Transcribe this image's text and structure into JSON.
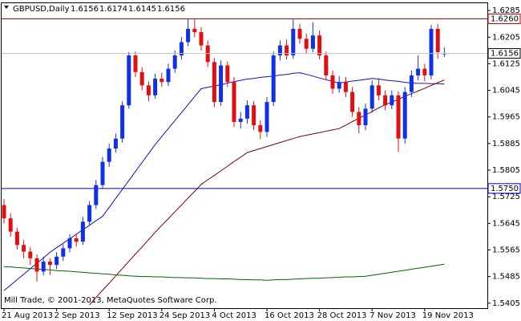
{
  "chart_data": {
    "type": "candlestick",
    "title": "GBPUSD,Daily",
    "footer": "Mill Trade, © 2001-2013, MetaQuotes Software Corp.",
    "categories": [
      "21 Aug 2013",
      null,
      null,
      null,
      null,
      null,
      null,
      null,
      "2 Sep 2013",
      null,
      null,
      null,
      null,
      null,
      null,
      null,
      "12 Sep 2013",
      null,
      null,
      null,
      null,
      null,
      null,
      null,
      "24 Sep 2013",
      null,
      null,
      null,
      null,
      null,
      null,
      null,
      "4 Oct 2013",
      null,
      null,
      null,
      null,
      null,
      null,
      null,
      "16 Oct 2013",
      null,
      null,
      null,
      null,
      null,
      null,
      null,
      "28 Oct 2013",
      null,
      null,
      null,
      null,
      null,
      null,
      null,
      "7 Nov 2013",
      null,
      null,
      null,
      null,
      null,
      null,
      null,
      "19 Nov 2013",
      null,
      null,
      null
    ],
    "open": [
      1.57,
      1.566,
      1.562,
      1.558,
      1.556,
      1.554,
      1.55,
      1.553,
      1.552,
      1.5545,
      1.557,
      1.56,
      1.559,
      1.565,
      1.57,
      1.576,
      1.583,
      1.587,
      1.59,
      1.6,
      1.615,
      1.61,
      1.606,
      1.603,
      1.608,
      1.607,
      1.611,
      1.615,
      1.619,
      1.623,
      1.622,
      1.618,
      1.613,
      1.601,
      1.612,
      1.607,
      1.595,
      1.596,
      1.6,
      1.594,
      1.592,
      1.601,
      1.615,
      1.618,
      1.615,
      1.623,
      1.62,
      1.617,
      1.621,
      1.615,
      1.609,
      1.605,
      1.607,
      1.604,
      1.598,
      1.594,
      1.599,
      1.606,
      1.603,
      1.6,
      1.603,
      1.59,
      1.604,
      1.609,
      1.611,
      1.609,
      1.623,
      1.6156
    ],
    "high": [
      1.5718,
      1.5675,
      1.5632,
      1.5595,
      1.5574,
      1.5552,
      1.5545,
      1.554,
      1.5558,
      1.5582,
      1.5612,
      1.5615,
      1.5665,
      1.5712,
      1.5775,
      1.5845,
      1.5885,
      1.5915,
      1.6012,
      1.616,
      1.6162,
      1.6115,
      1.6072,
      1.6095,
      1.6098,
      1.6125,
      1.6165,
      1.6205,
      1.626,
      1.6258,
      1.6235,
      1.6195,
      1.6142,
      1.6135,
      1.6132,
      1.6085,
      1.598,
      1.6015,
      1.6012,
      1.5955,
      1.6025,
      1.6162,
      1.6195,
      1.6198,
      1.6258,
      1.6245,
      1.6215,
      1.625,
      1.6225,
      1.6162,
      1.6105,
      1.6088,
      1.6085,
      1.6055,
      1.5995,
      1.6005,
      1.6075,
      1.6078,
      1.6045,
      1.6045,
      1.6042,
      1.6055,
      1.6105,
      1.615,
      1.6125,
      1.6242,
      1.6245,
      1.6174
    ],
    "low": [
      1.5645,
      1.5605,
      1.5566,
      1.554,
      1.552,
      1.547,
      1.5488,
      1.549,
      1.5507,
      1.5532,
      1.5558,
      1.5575,
      1.558,
      1.5638,
      1.5688,
      1.5748,
      1.5815,
      1.5858,
      1.5888,
      1.599,
      1.6085,
      1.6045,
      1.6012,
      1.602,
      1.6055,
      1.6058,
      1.6098,
      1.6138,
      1.6178,
      1.6205,
      1.6165,
      1.6115,
      1.5995,
      1.5998,
      1.6055,
      1.5935,
      1.593,
      1.5945,
      1.5925,
      1.5898,
      1.5905,
      1.5998,
      1.6135,
      1.6138,
      1.614,
      1.6185,
      1.6155,
      1.616,
      1.6138,
      1.6075,
      1.6035,
      1.6038,
      1.6025,
      1.5965,
      1.5915,
      1.5925,
      1.5978,
      1.6015,
      1.5985,
      1.5988,
      1.586,
      1.5885,
      1.6025,
      1.6075,
      1.6072,
      1.6078,
      1.614,
      1.6145
    ],
    "close": [
      1.566,
      1.562,
      1.558,
      1.556,
      1.554,
      1.55,
      1.553,
      1.552,
      1.5545,
      1.557,
      1.56,
      1.559,
      1.565,
      1.57,
      1.576,
      1.583,
      1.587,
      1.59,
      1.6,
      1.615,
      1.61,
      1.606,
      1.603,
      1.608,
      1.607,
      1.611,
      1.615,
      1.619,
      1.623,
      1.622,
      1.618,
      1.613,
      1.601,
      1.612,
      1.607,
      1.595,
      1.596,
      1.6,
      1.594,
      1.592,
      1.601,
      1.615,
      1.618,
      1.615,
      1.623,
      1.62,
      1.617,
      1.621,
      1.615,
      1.609,
      1.605,
      1.607,
      1.604,
      1.598,
      1.594,
      1.599,
      1.606,
      1.603,
      1.6,
      1.603,
      1.59,
      1.604,
      1.609,
      1.611,
      1.609,
      1.623,
      1.616,
      1.6156
    ],
    "up_color": "#1030e8",
    "down_color": "#e01010",
    "overlays": [
      {
        "color": "#1010c0",
        "values": [
          1.5443,
          1.5459,
          1.5476,
          1.5492,
          1.5509,
          1.5525,
          1.5541,
          1.5558,
          1.5572,
          1.5585,
          1.5599,
          1.5612,
          1.5626,
          1.5639,
          1.5653,
          1.5666,
          1.5693,
          1.572,
          1.5747,
          1.5774,
          1.5801,
          1.5828,
          1.5855,
          1.5882,
          1.5906,
          1.593,
          1.5954,
          1.5978,
          1.6002,
          1.6026,
          1.605,
          1.6054,
          1.6058,
          1.6062,
          1.6067,
          1.6071,
          1.6075,
          1.6079,
          1.6081,
          1.6084,
          1.6086,
          1.6088,
          1.6091,
          1.6093,
          1.6096,
          1.6098,
          1.6093,
          1.6088,
          1.6082,
          1.6077,
          1.6072,
          1.6067,
          1.607,
          1.6073,
          1.6075,
          1.6078,
          1.6081,
          1.6079,
          1.6076,
          1.6074,
          1.6072,
          1.6069,
          1.6067,
          1.6066,
          1.6066,
          1.6065,
          1.6065,
          1.6064
        ]
      },
      {
        "color": "#800000",
        "values": [
          null,
          null,
          null,
          null,
          null,
          null,
          null,
          null,
          null,
          null,
          null,
          null,
          null,
          1.54,
          1.5422,
          1.5444,
          1.5465,
          1.5487,
          1.5509,
          1.5531,
          1.5553,
          1.5574,
          1.5596,
          1.5618,
          1.5639,
          1.5659,
          1.568,
          1.57,
          1.5721,
          1.5741,
          1.5762,
          1.5776,
          1.5789,
          1.5803,
          1.5817,
          1.5831,
          1.5844,
          1.5858,
          1.5864,
          1.587,
          1.5876,
          1.5882,
          1.5888,
          1.5894,
          1.59,
          1.5906,
          1.591,
          1.5914,
          1.5918,
          1.5922,
          1.5926,
          1.593,
          1.594,
          1.5951,
          1.5961,
          1.5971,
          1.5981,
          1.5992,
          1.6002,
          1.601,
          1.6018,
          1.6027,
          1.6035,
          1.6043,
          1.6051,
          1.606,
          1.6068,
          1.6076
        ]
      },
      {
        "color": "#006400",
        "values": [
          1.5515,
          1.5514,
          1.5512,
          1.5511,
          1.5509,
          1.5508,
          1.5506,
          1.5505,
          1.5503,
          1.5502,
          1.5501,
          1.5499,
          1.5498,
          1.5496,
          1.5495,
          1.5493,
          1.5492,
          1.549,
          1.5489,
          1.5487,
          1.5486,
          1.5485,
          1.5485,
          1.5484,
          1.5484,
          1.5483,
          1.5482,
          1.5482,
          1.5481,
          1.5481,
          1.548,
          1.5479,
          1.5479,
          1.5478,
          1.5478,
          1.5477,
          1.5476,
          1.5476,
          1.5475,
          1.5475,
          1.5474,
          1.5475,
          1.5476,
          1.5476,
          1.5477,
          1.5478,
          1.5479,
          1.548,
          1.548,
          1.5481,
          1.5482,
          1.5483,
          1.5484,
          1.5484,
          1.5485,
          1.5486,
          1.5489,
          1.5492,
          1.5495,
          1.5498,
          1.5501,
          1.5504,
          1.5507,
          1.551,
          1.5513,
          1.5516,
          1.5519,
          1.5522
        ]
      }
    ],
    "levels": [
      {
        "value": 1.626,
        "label": "1.6260",
        "color": "#c00000"
      },
      {
        "value": 1.575,
        "label": "1.5750",
        "color": "#0000c0"
      }
    ],
    "ylim": [
      1.539,
      1.6307
    ],
    "yticks": [
      1.6285,
      1.6205,
      1.6125,
      1.6045,
      1.5965,
      1.5885,
      1.5805,
      1.5725,
      1.5645,
      1.5565,
      1.5485,
      1.5405
    ]
  }
}
